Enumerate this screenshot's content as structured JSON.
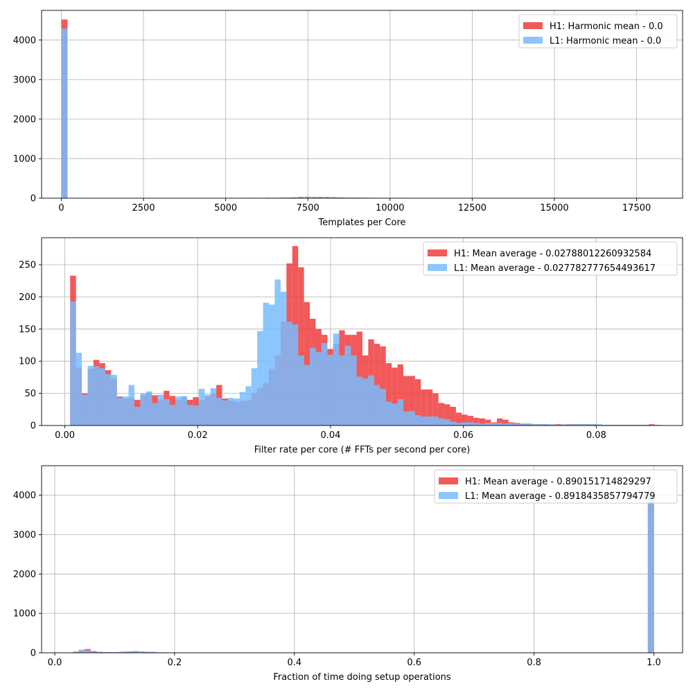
{
  "colors": {
    "h1": "#f03c3c",
    "l1": "#78bcff",
    "overlap": "#8a8cc6",
    "grid": "#b0b0b0"
  },
  "chart_data": [
    {
      "type": "bar",
      "xlabel": "Templates per Core",
      "ylabel": "",
      "xlim": [
        -600,
        18900
      ],
      "ylim": [
        0,
        4750
      ],
      "xticks": [
        0,
        2500,
        5000,
        7500,
        10000,
        12500,
        15000,
        17500
      ],
      "xtick_labels": [
        "0",
        "2500",
        "5000",
        "7500",
        "10000",
        "12500",
        "15000",
        "17500"
      ],
      "yticks": [
        0,
        1000,
        2000,
        3000,
        4000
      ],
      "ytick_labels": [
        "0",
        "1000",
        "2000",
        "3000",
        "4000"
      ],
      "bin_width": 180,
      "grid": true,
      "legend_position": "upper right",
      "series": [
        {
          "name": "H1: Harmonic mean  - 0.0",
          "bins": [
            [
              10,
              4520
            ],
            [
              5600,
              6
            ],
            [
              5800,
              10
            ],
            [
              6000,
              8
            ],
            [
              6200,
              12
            ],
            [
              6400,
              10
            ],
            [
              6600,
              14
            ],
            [
              6800,
              18
            ],
            [
              7000,
              22
            ],
            [
              7200,
              34
            ],
            [
              7400,
              38
            ],
            [
              7600,
              30
            ],
            [
              7800,
              36
            ],
            [
              8000,
              32
            ],
            [
              8200,
              28
            ],
            [
              8400,
              20
            ],
            [
              8600,
              16
            ],
            [
              8800,
              14
            ],
            [
              9000,
              12
            ],
            [
              9200,
              10
            ],
            [
              9400,
              8
            ],
            [
              9600,
              6
            ],
            [
              9800,
              5
            ],
            [
              10000,
              4
            ],
            [
              10200,
              3
            ]
          ]
        },
        {
          "name": "L1: Harmonic mean  - 0.0",
          "bins": [
            [
              10,
              4290
            ],
            [
              5500,
              4
            ],
            [
              5700,
              6
            ],
            [
              6000,
              8
            ],
            [
              6200,
              10
            ],
            [
              6400,
              12
            ],
            [
              6600,
              14
            ],
            [
              6800,
              16
            ],
            [
              7000,
              20
            ],
            [
              7200,
              30
            ],
            [
              7400,
              34
            ],
            [
              7600,
              28
            ],
            [
              7800,
              32
            ],
            [
              8000,
              28
            ],
            [
              8200,
              26
            ],
            [
              8400,
              22
            ],
            [
              8600,
              18
            ],
            [
              8800,
              16
            ],
            [
              9000,
              14
            ],
            [
              9200,
              12
            ],
            [
              9400,
              10
            ],
            [
              9600,
              8
            ],
            [
              9800,
              6
            ],
            [
              10000,
              5
            ],
            [
              10200,
              4
            ]
          ]
        }
      ]
    },
    {
      "type": "bar",
      "xlabel": "Filter rate per core (# FFTs per second per core)",
      "ylabel": "",
      "xlim": [
        -0.0035,
        0.093
      ],
      "ylim": [
        0,
        292
      ],
      "xticks": [
        0,
        0.02,
        0.04,
        0.06,
        0.08
      ],
      "xtick_labels": [
        "0.00",
        "0.02",
        "0.04",
        "0.06",
        "0.08"
      ],
      "yticks": [
        0,
        50,
        100,
        150,
        200,
        250
      ],
      "ytick_labels": [
        "0",
        "50",
        "100",
        "150",
        "200",
        "250"
      ],
      "x_start": 0.0008,
      "bin_width": 0.00088,
      "grid": true,
      "legend_position": "upper right",
      "series": [
        {
          "name": "H1: Mean average - 0.02788012260932584",
          "values": [
            233,
            90,
            50,
            88,
            102,
            97,
            86,
            73,
            45,
            42,
            43,
            40,
            47,
            51,
            47,
            40,
            54,
            46,
            40,
            44,
            40,
            44,
            39,
            45,
            50,
            63,
            42,
            39,
            37,
            38,
            39,
            51,
            58,
            66,
            88,
            109,
            162,
            252,
            279,
            246,
            192,
            166,
            150,
            141,
            119,
            127,
            148,
            141,
            141,
            146,
            109,
            134,
            127,
            123,
            97,
            90,
            95,
            77,
            77,
            72,
            56,
            56,
            50,
            35,
            33,
            29,
            20,
            17,
            15,
            12,
            11,
            9,
            5,
            11,
            9,
            5,
            4,
            3,
            3,
            2,
            2,
            2,
            1,
            2,
            1,
            2,
            2,
            2,
            2,
            2,
            1,
            1,
            1,
            1,
            1,
            1,
            1,
            1,
            1,
            2,
            1
          ]
        },
        {
          "name": "L1: Mean average - 0.027782777654493617",
          "values": [
            193,
            113,
            48,
            93,
            92,
            89,
            80,
            79,
            43,
            45,
            63,
            29,
            50,
            53,
            35,
            48,
            41,
            32,
            45,
            46,
            32,
            31,
            57,
            48,
            58,
            43,
            39,
            43,
            42,
            52,
            61,
            89,
            147,
            191,
            188,
            227,
            208,
            161,
            157,
            109,
            94,
            121,
            114,
            128,
            110,
            143,
            109,
            124,
            109,
            76,
            73,
            78,
            63,
            57,
            37,
            34,
            41,
            22,
            22,
            16,
            14,
            14,
            14,
            11,
            10,
            6,
            4,
            5,
            5,
            4,
            3,
            4,
            4,
            4,
            3,
            4,
            3,
            3,
            3,
            2,
            2,
            2,
            2,
            1,
            2,
            2,
            2,
            2,
            2,
            2,
            2,
            1,
            1,
            1,
            1,
            1,
            1,
            1,
            1,
            1,
            1
          ]
        }
      ]
    },
    {
      "type": "bar",
      "xlabel": "Fraction of time doing setup operations",
      "ylabel": "",
      "xlim": [
        -0.022,
        1.048
      ],
      "ylim": [
        0,
        4750
      ],
      "xticks": [
        0,
        0.2,
        0.4,
        0.6,
        0.8,
        1.0
      ],
      "xtick_labels": [
        "0.0",
        "0.2",
        "0.4",
        "0.6",
        "0.8",
        "1.0"
      ],
      "yticks": [
        0,
        1000,
        2000,
        3000,
        4000
      ],
      "ytick_labels": [
        "0",
        "1000",
        "2000",
        "3000",
        "4000"
      ],
      "bin_width": 0.0098,
      "grid": true,
      "legend_position": "upper right",
      "series": [
        {
          "name": "H1: Mean average - 0.890151714829297",
          "bins": [
            [
              0.03,
              30
            ],
            [
              0.04,
              70
            ],
            [
              0.05,
              95
            ],
            [
              0.06,
              45
            ],
            [
              0.07,
              25
            ],
            [
              0.08,
              18
            ],
            [
              0.09,
              15
            ],
            [
              0.1,
              20
            ],
            [
              0.11,
              28
            ],
            [
              0.12,
              35
            ],
            [
              0.13,
              42
            ],
            [
              0.14,
              30
            ],
            [
              0.15,
              26
            ],
            [
              0.16,
              22
            ],
            [
              0.17,
              12
            ],
            [
              0.18,
              10
            ],
            [
              0.19,
              8
            ],
            [
              0.2,
              6
            ],
            [
              0.21,
              6
            ],
            [
              0.22,
              5
            ],
            [
              0.23,
              4
            ],
            [
              0.24,
              4
            ],
            [
              0.25,
              3
            ],
            [
              0.27,
              3
            ],
            [
              0.29,
              3
            ],
            [
              0.3,
              5
            ],
            [
              0.49,
              3
            ],
            [
              0.99,
              4250
            ]
          ]
        },
        {
          "name": "L1: Mean average - 0.8918435857794779",
          "bins": [
            [
              0.03,
              25
            ],
            [
              0.04,
              80
            ],
            [
              0.05,
              60
            ],
            [
              0.06,
              40
            ],
            [
              0.07,
              22
            ],
            [
              0.08,
              15
            ],
            [
              0.09,
              14
            ],
            [
              0.1,
              18
            ],
            [
              0.11,
              24
            ],
            [
              0.12,
              30
            ],
            [
              0.13,
              36
            ],
            [
              0.14,
              34
            ],
            [
              0.15,
              22
            ],
            [
              0.16,
              18
            ],
            [
              0.17,
              12
            ],
            [
              0.18,
              10
            ],
            [
              0.19,
              8
            ],
            [
              0.2,
              6
            ],
            [
              0.21,
              5
            ],
            [
              0.22,
              4
            ],
            [
              0.23,
              4
            ],
            [
              0.24,
              3
            ],
            [
              0.25,
              3
            ],
            [
              0.27,
              2
            ],
            [
              0.29,
              2
            ],
            [
              0.49,
              2
            ],
            [
              0.99,
              4220
            ]
          ]
        }
      ]
    }
  ]
}
